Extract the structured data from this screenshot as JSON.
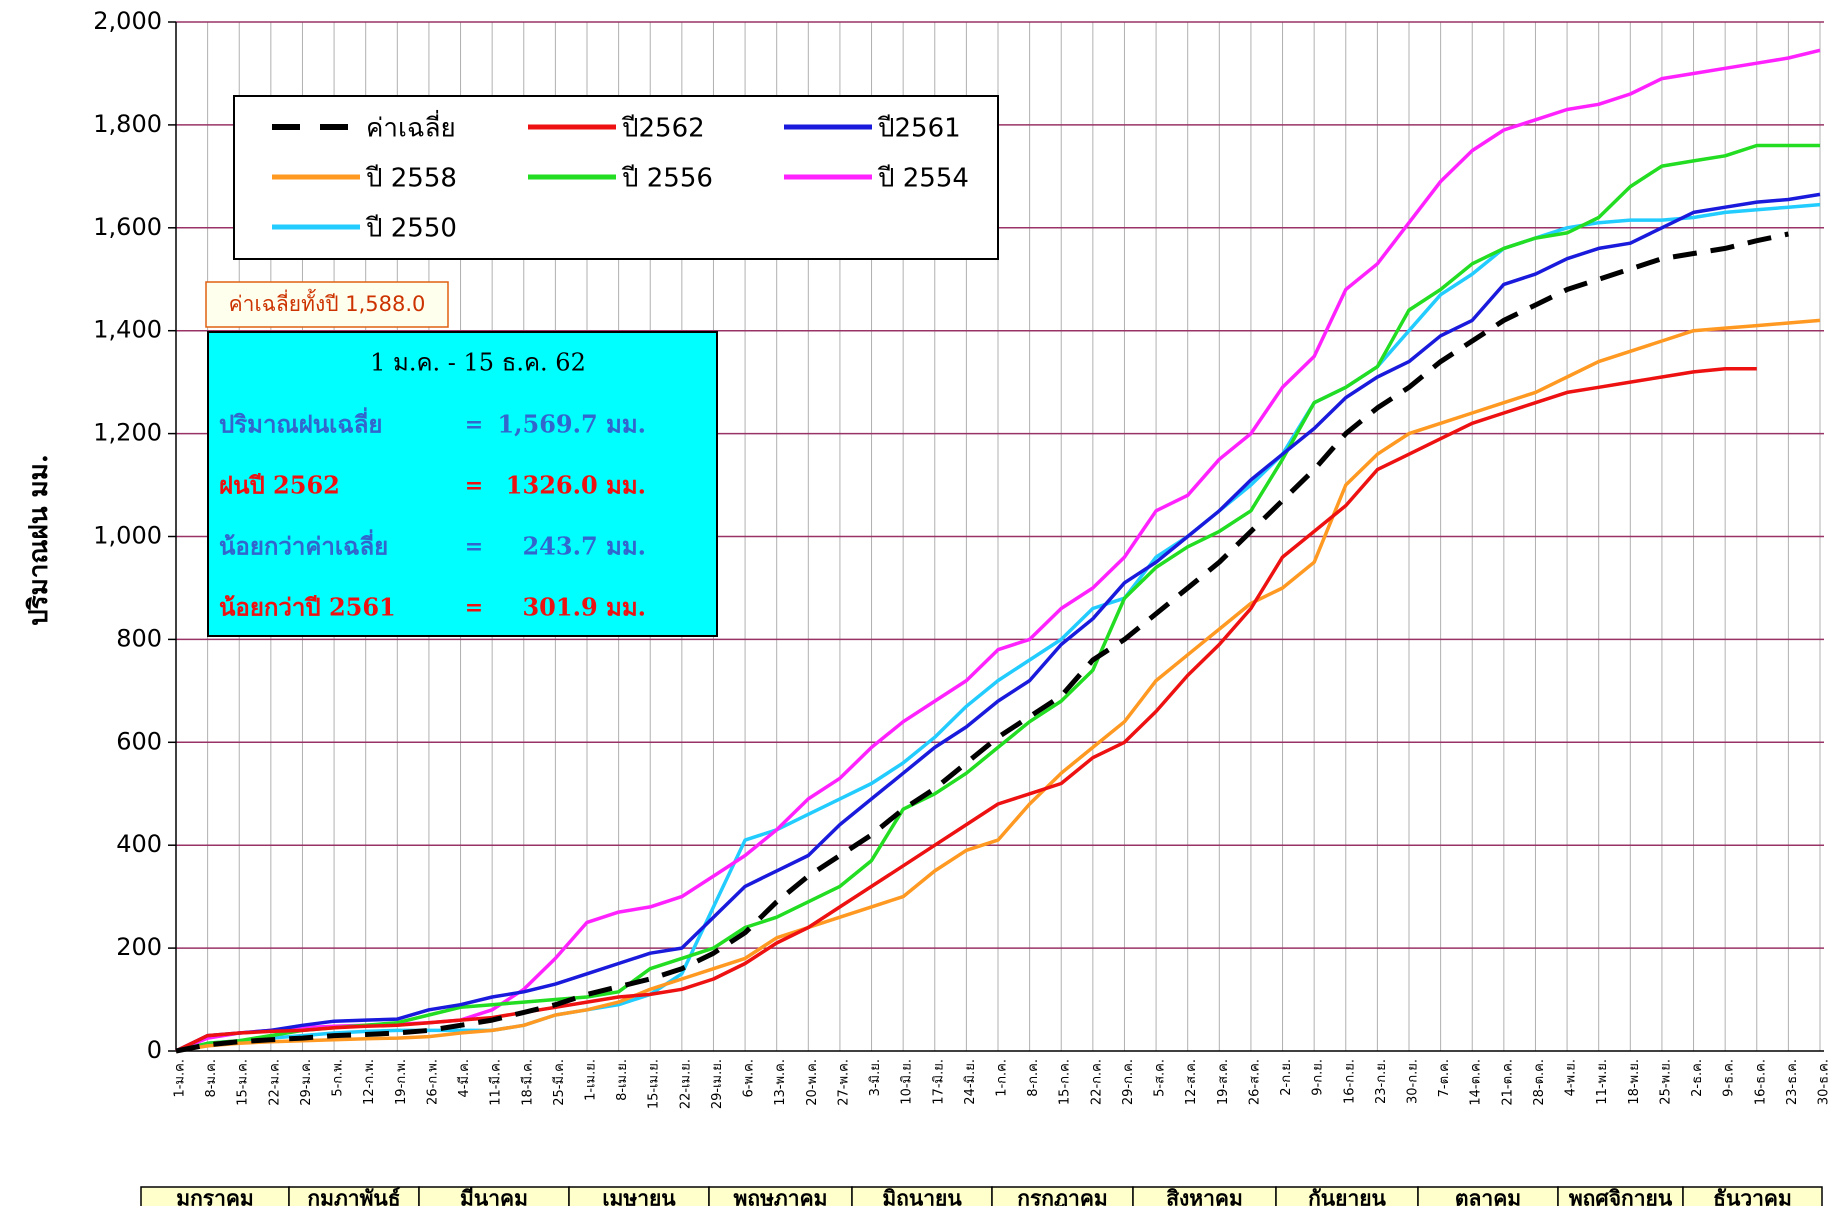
{
  "chart_data": {
    "type": "line",
    "y_label": "ปริมาณฝน มม.",
    "categories": [
      "1-ม.ค.",
      "8-ม.ค.",
      "15-ม.ค.",
      "22-ม.ค.",
      "29-ม.ค.",
      "5-ก.พ.",
      "12-ก.พ.",
      "19-ก.พ.",
      "26-ก.พ.",
      "4-มี.ค.",
      "11-มี.ค.",
      "18-มี.ค.",
      "25-มี.ค.",
      "1-เม.ย.",
      "8-เม.ย.",
      "15-เม.ย.",
      "22-เม.ย.",
      "29-เม.ย.",
      "6-พ.ค.",
      "13-พ.ค.",
      "20-พ.ค.",
      "27-พ.ค.",
      "3-มิ.ย.",
      "10-มิ.ย.",
      "17-มิ.ย.",
      "24-มิ.ย.",
      "1-ก.ค.",
      "8-ก.ค.",
      "15-ก.ค.",
      "22-ก.ค.",
      "29-ก.ค.",
      "5-ส.ค.",
      "12-ส.ค.",
      "19-ส.ค.",
      "26-ส.ค.",
      "2-ก.ย.",
      "9-ก.ย.",
      "16-ก.ย.",
      "23-ก.ย.",
      "30-ก.ย.",
      "7-ต.ค.",
      "14-ต.ค.",
      "21-ต.ค.",
      "28-ต.ค.",
      "4-พ.ย.",
      "11-พ.ย.",
      "18-พ.ย.",
      "25-พ.ย.",
      "2-ธ.ค.",
      "9-ธ.ค.",
      "16-ธ.ค.",
      "23-ธ.ค.",
      "30-ธ.ค."
    ],
    "series": [
      {
        "name": "ค่าเฉลี่ย",
        "color": "#000000",
        "style": "dashed",
        "values": [
          0,
          12,
          18,
          22,
          25,
          30,
          32,
          35,
          40,
          50,
          60,
          75,
          90,
          110,
          125,
          140,
          160,
          190,
          230,
          290,
          340,
          380,
          420,
          470,
          510,
          560,
          610,
          650,
          690,
          760,
          800,
          850,
          900,
          950,
          1010,
          1070,
          1130,
          1200,
          1250,
          1290,
          1340,
          1380,
          1420,
          1450,
          1480,
          1500,
          1520,
          1540,
          1550,
          1560,
          1575,
          1588,
          null
        ]
      },
      {
        "name": "ปี2562",
        "color": "#ee1111",
        "style": "solid",
        "values": [
          0,
          30,
          35,
          38,
          40,
          45,
          48,
          50,
          55,
          60,
          65,
          75,
          85,
          95,
          105,
          110,
          120,
          140,
          170,
          210,
          240,
          280,
          320,
          360,
          400,
          440,
          480,
          500,
          520,
          570,
          600,
          660,
          730,
          790,
          860,
          960,
          1010,
          1060,
          1130,
          1160,
          1190,
          1220,
          1240,
          1260,
          1280,
          1290,
          1300,
          1310,
          1320,
          1326,
          1326,
          null,
          null
        ]
      },
      {
        "name": "ปี2561",
        "color": "#1a1adc",
        "style": "solid",
        "values": [
          0,
          30,
          35,
          40,
          50,
          58,
          60,
          62,
          80,
          90,
          105,
          115,
          130,
          150,
          170,
          190,
          200,
          260,
          320,
          350,
          380,
          440,
          490,
          540,
          590,
          630,
          680,
          720,
          790,
          840,
          910,
          950,
          1000,
          1050,
          1110,
          1160,
          1210,
          1270,
          1310,
          1340,
          1390,
          1420,
          1490,
          1510,
          1540,
          1560,
          1570,
          1600,
          1630,
          1640,
          1650,
          1655,
          1665
        ]
      },
      {
        "name": "ปี 2558",
        "color": "#ff9922",
        "style": "solid",
        "values": [
          0,
          10,
          15,
          18,
          20,
          22,
          24,
          25,
          28,
          35,
          40,
          50,
          70,
          80,
          95,
          120,
          140,
          160,
          180,
          220,
          240,
          260,
          280,
          300,
          350,
          390,
          410,
          480,
          540,
          590,
          640,
          720,
          770,
          820,
          870,
          900,
          950,
          1100,
          1160,
          1200,
          1220,
          1240,
          1260,
          1280,
          1310,
          1340,
          1360,
          1380,
          1400,
          1405,
          1410,
          1415,
          1420
        ]
      },
      {
        "name": "ปี 2556",
        "color": "#22dd22",
        "style": "solid",
        "values": [
          0,
          15,
          20,
          30,
          40,
          45,
          50,
          55,
          70,
          85,
          90,
          95,
          100,
          105,
          115,
          160,
          180,
          200,
          240,
          260,
          290,
          320,
          370,
          470,
          500,
          540,
          590,
          640,
          680,
          740,
          880,
          940,
          980,
          1010,
          1050,
          1150,
          1260,
          1290,
          1330,
          1440,
          1480,
          1530,
          1560,
          1580,
          1590,
          1620,
          1680,
          1720,
          1730,
          1740,
          1760,
          1760,
          1760
        ]
      },
      {
        "name": "ปี 2554",
        "color": "#ff22ff",
        "style": "solid",
        "values": [
          0,
          25,
          35,
          40,
          45,
          48,
          50,
          52,
          55,
          60,
          80,
          120,
          180,
          250,
          270,
          280,
          300,
          340,
          380,
          430,
          490,
          530,
          590,
          640,
          680,
          720,
          780,
          800,
          860,
          900,
          960,
          1050,
          1080,
          1150,
          1200,
          1290,
          1350,
          1480,
          1530,
          1610,
          1690,
          1750,
          1790,
          1810,
          1830,
          1840,
          1860,
          1890,
          1900,
          1910,
          1920,
          1930,
          1945
        ]
      },
      {
        "name": "ปี 2550",
        "color": "#22ccff",
        "style": "solid",
        "values": [
          0,
          15,
          20,
          25,
          30,
          35,
          38,
          40,
          40,
          40,
          40,
          50,
          70,
          80,
          90,
          110,
          150,
          280,
          410,
          430,
          460,
          490,
          520,
          560,
          610,
          670,
          720,
          760,
          800,
          860,
          880,
          960,
          1000,
          1050,
          1100,
          1160,
          1260,
          1290,
          1330,
          1400,
          1470,
          1510,
          1560,
          1580,
          1600,
          1610,
          1615,
          1615,
          1620,
          1630,
          1635,
          1640,
          1645
        ]
      }
    ],
    "ylim": [
      0,
      2000
    ],
    "yticks": [
      0,
      200,
      400,
      600,
      800,
      {
        "value": 1000,
        "label": "1,000"
      },
      {
        "value": 1200,
        "label": "1,200"
      },
      {
        "value": 1400,
        "label": "1,400"
      },
      {
        "value": 1600,
        "label": "1,600"
      },
      {
        "value": 1800,
        "label": "1,800"
      },
      {
        "value": 2000,
        "label": "2,000"
      }
    ],
    "grid": true,
    "annual_average_note": "ค่าเฉลี่ยทั้งปี 1,588.0",
    "summary": {
      "title": "1 ม.ค. - 15 ธ.ค. 62",
      "rows": [
        {
          "label": "ปริมาณฝนเฉลี่ย",
          "eq": "=",
          "value": "1,569.7 มม.",
          "color": "#3366cc"
        },
        {
          "label": "ฝนปี 2562",
          "eq": "=",
          "value": "1326.0 มม.",
          "color": "#ee1111"
        },
        {
          "label": "น้อยกว่าค่าเฉลี่ย",
          "eq": "=",
          "value": "243.7 มม.",
          "color": "#3366cc"
        },
        {
          "label": "น้อยกว่าปี 2561",
          "eq": "=",
          "value": "301.9 มม.",
          "color": "#ee1111"
        }
      ]
    },
    "months": [
      "มกราคม",
      "กุมภาพันธ์",
      "มีนาคม",
      "เมษายน",
      "พฤษภาคม",
      "มิถุนายน",
      "กรกฎาคม",
      "สิงหาคม",
      "กันยายน",
      "ตุลาคม",
      "พฤศจิกายน",
      "ธันวาคม"
    ]
  }
}
